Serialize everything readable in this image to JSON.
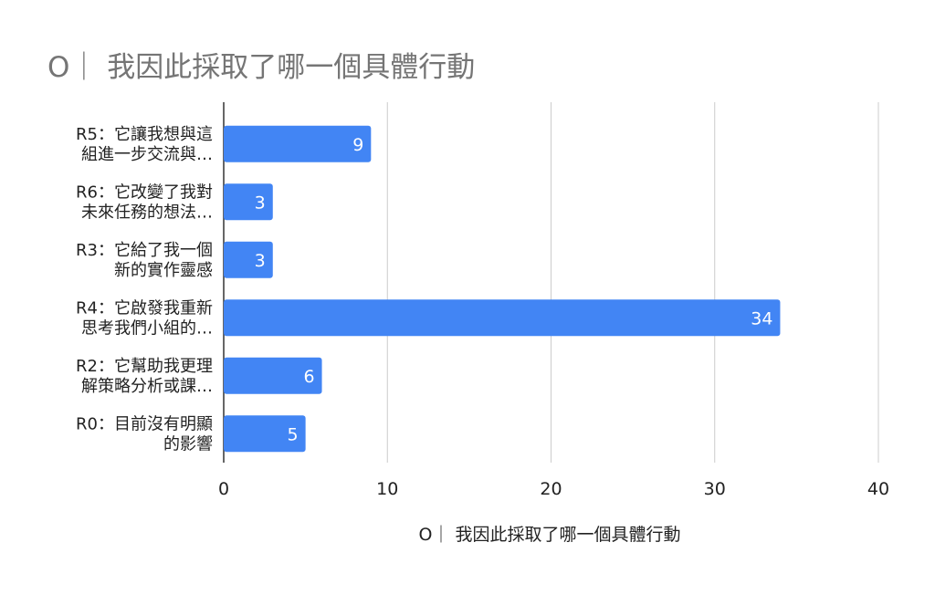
{
  "chart_data": {
    "type": "bar",
    "orientation": "horizontal",
    "title": "O｜ 我因此採取了哪一個具體行動",
    "xlabel": "O｜ 我因此採取了哪一個具體行動",
    "ylabel": "",
    "categories": [
      [
        "R5：它讓我想與這",
        "組進一步交流與…"
      ],
      [
        "R6：它改變了我對",
        "未來任務的想法…"
      ],
      [
        "R3：它給了我一個",
        "新的實作靈感"
      ],
      [
        "R4：它啟發我重新",
        "思考我們小組的…"
      ],
      [
        "R2：它幫助我更理",
        "解策略分析或課…"
      ],
      [
        "R0：目前沒有明顯",
        "的影響"
      ]
    ],
    "values": [
      9,
      3,
      3,
      34,
      6,
      5
    ],
    "xlim": [
      0,
      40
    ],
    "xticks": [
      "0",
      "10",
      "20",
      "30",
      "40"
    ],
    "grid": true,
    "legend": "none",
    "bar_color": "#4285f4",
    "data_label_color": "#ffffff"
  }
}
